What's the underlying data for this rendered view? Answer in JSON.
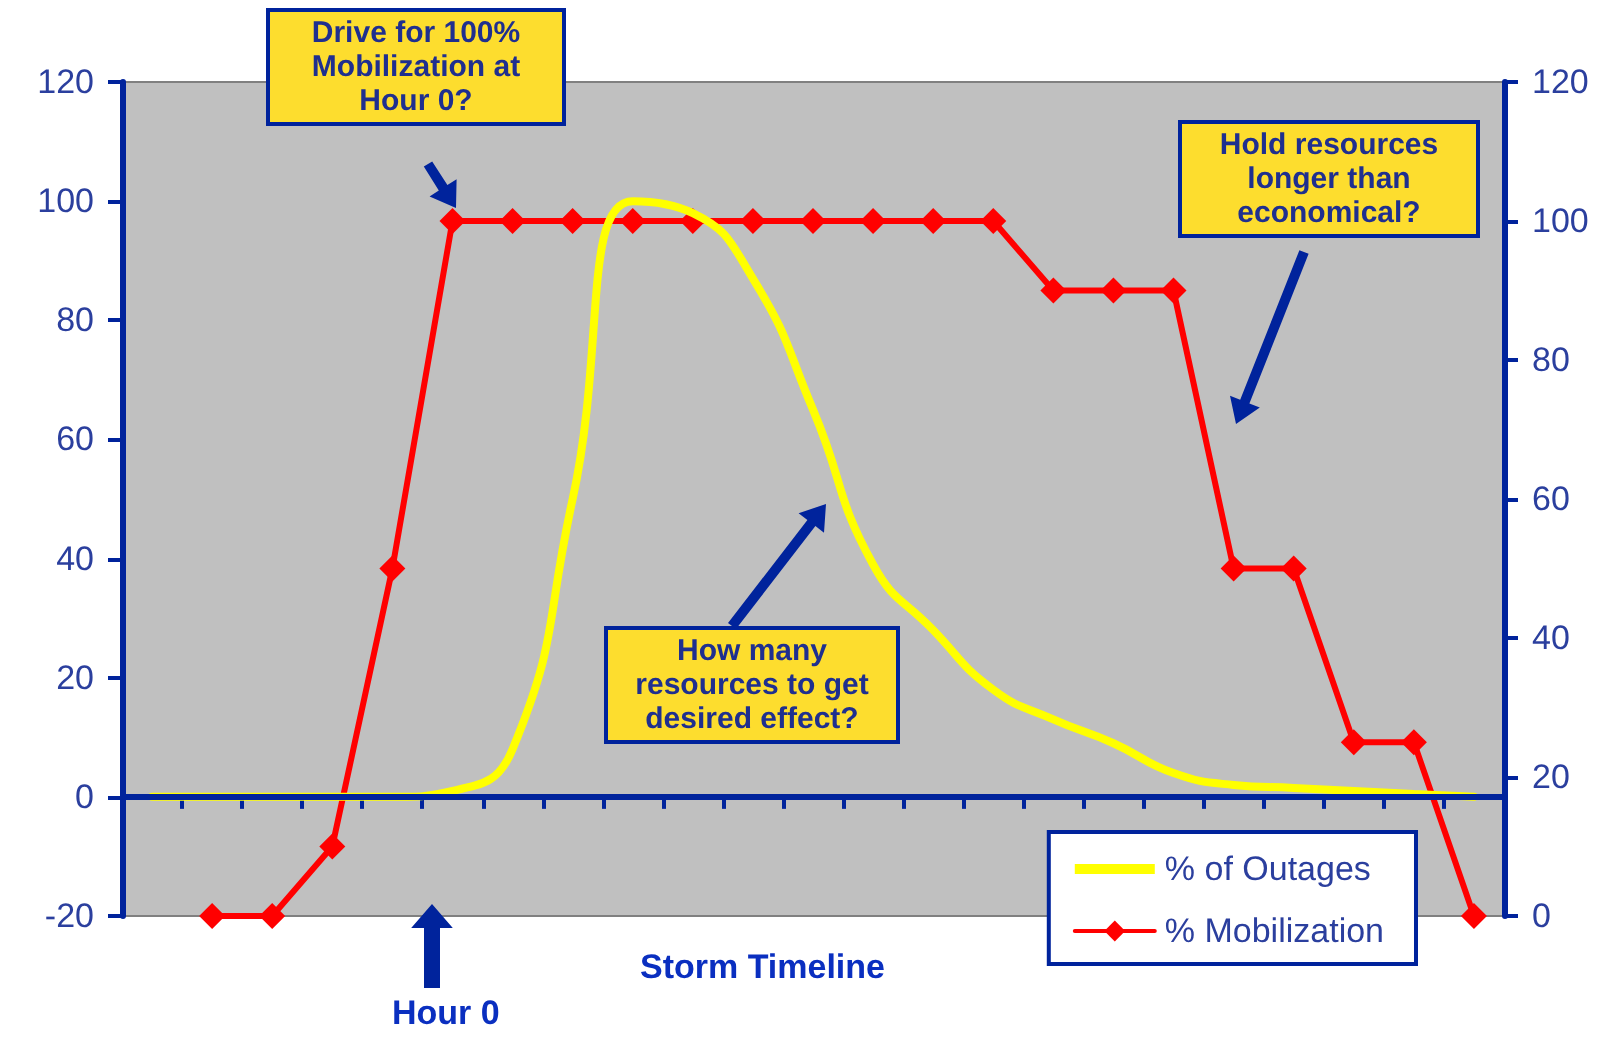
{
  "chart_data": {
    "type": "line",
    "xlabel": "Storm Timeline",
    "categories": [
      null,
      null,
      null,
      null,
      null,
      null,
      null,
      null,
      null,
      null,
      null,
      null,
      null,
      null,
      null,
      null,
      null,
      null,
      null,
      null,
      null,
      null,
      null
    ],
    "series": [
      {
        "name": "% of Outages",
        "color": "#ffff00",
        "marker": "none",
        "values": [
          0,
          0,
          0,
          0,
          0,
          1,
          8,
          50,
          100,
          98,
          87,
          65,
          39,
          28,
          18,
          13,
          9,
          4,
          2,
          1.5,
          1,
          0.5,
          0
        ]
      },
      {
        "name": "% Mobilization",
        "color": "#ff0000",
        "marker": "diamond",
        "axis": "y2",
        "values": [
          null,
          0,
          0,
          10,
          50,
          100,
          100,
          100,
          100,
          100,
          100,
          100,
          100,
          100,
          100,
          90,
          90,
          90,
          50,
          50,
          25,
          25,
          0
        ]
      }
    ],
    "ylim": [
      -20,
      120
    ],
    "yticks": [
      -20,
      0,
      20,
      40,
      60,
      80,
      100,
      120
    ],
    "y2lim": [
      0,
      120
    ],
    "y2ticks": [
      0,
      20,
      40,
      60,
      80,
      100,
      120
    ],
    "legend": "bottom right",
    "ref_lines": [
      {
        "axis": "y",
        "value": 0,
        "color": "#00239c"
      }
    ],
    "annotations": [
      "Drive for 100% Mobilization at Hour 0?",
      "How many resources to get desired effect?",
      "Hold resources longer than economical?",
      "Hour 0"
    ]
  }
}
